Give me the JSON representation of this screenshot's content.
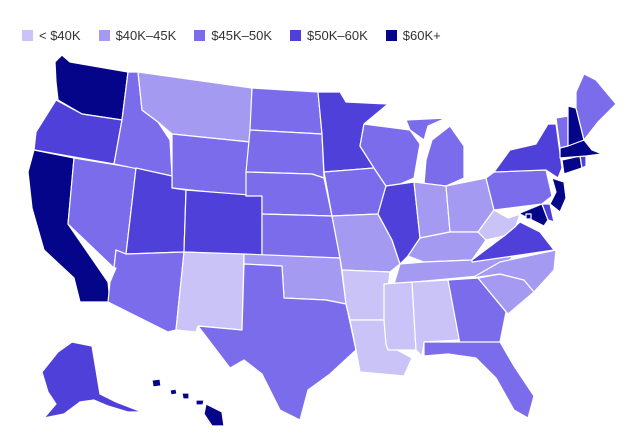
{
  "colors": {
    "lt40": "#c9c3f7",
    "40_45": "#a49af2",
    "45_50": "#7b6cec",
    "50_60": "#4f40da",
    "60plus": "#05058a"
  },
  "legend": [
    {
      "key": "lt40",
      "label": "< $40K"
    },
    {
      "key": "40_45",
      "label": "$40K–45K"
    },
    {
      "key": "45_50",
      "label": "$45K–50K"
    },
    {
      "key": "50_60",
      "label": "$50K–60K"
    },
    {
      "key": "60plus",
      "label": "$60K+"
    }
  ],
  "states": {
    "WA": "60plus",
    "OR": "50_60",
    "CA": "60plus",
    "NV": "45_50",
    "ID": "45_50",
    "MT": "40_45",
    "WY": "45_50",
    "UT": "50_60",
    "AZ": "45_50",
    "CO": "50_60",
    "NM": "lt40",
    "ND": "45_50",
    "SD": "45_50",
    "NE": "45_50",
    "KS": "45_50",
    "OK": "40_45",
    "TX": "45_50",
    "MN": "50_60",
    "IA": "45_50",
    "MO": "40_45",
    "AR": "lt40",
    "LA": "lt40",
    "WI": "45_50",
    "IL": "50_60",
    "MI": "45_50",
    "IN": "40_45",
    "OH": "40_45",
    "KY": "40_45",
    "TN": "40_45",
    "MS": "lt40",
    "AL": "lt40",
    "GA": "45_50",
    "FL": "45_50",
    "SC": "40_45",
    "NC": "40_45",
    "VA": "50_60",
    "WV": "lt40",
    "PA": "45_50",
    "NY": "50_60",
    "VT": "45_50",
    "NH": "60plus",
    "ME": "45_50",
    "MA": "60plus",
    "RI": "50_60",
    "CT": "60plus",
    "NJ": "60plus",
    "DE": "50_60",
    "MD": "60plus",
    "DC": "60plus",
    "AK": "50_60",
    "HI": "60plus"
  }
}
